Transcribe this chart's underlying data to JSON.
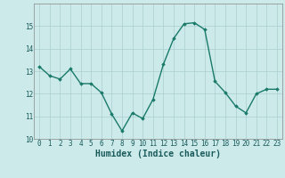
{
  "xlabel": "Humidex (Indice chaleur)",
  "x": [
    0,
    1,
    2,
    3,
    4,
    5,
    6,
    7,
    8,
    9,
    10,
    11,
    12,
    13,
    14,
    15,
    16,
    17,
    18,
    19,
    20,
    21,
    22,
    23
  ],
  "y": [
    13.2,
    12.8,
    12.65,
    13.1,
    12.45,
    12.45,
    12.05,
    11.1,
    10.35,
    11.15,
    10.9,
    11.75,
    13.3,
    14.45,
    15.1,
    15.15,
    14.85,
    12.55,
    12.05,
    11.45,
    11.15,
    12.0,
    12.2,
    12.2
  ],
  "ylim": [
    10,
    16
  ],
  "xlim": [
    -0.5,
    23.5
  ],
  "yticks": [
    10,
    11,
    12,
    13,
    14,
    15
  ],
  "xticks": [
    0,
    1,
    2,
    3,
    4,
    5,
    6,
    7,
    8,
    9,
    10,
    11,
    12,
    13,
    14,
    15,
    16,
    17,
    18,
    19,
    20,
    21,
    22,
    23
  ],
  "line_color": "#1a7a6a",
  "marker": "D",
  "marker_size": 1.8,
  "line_width": 1.0,
  "bg_color": "#cceaea",
  "grid_color": "#aacece",
  "tick_label_fontsize": 5.5,
  "xlabel_fontsize": 7.0
}
